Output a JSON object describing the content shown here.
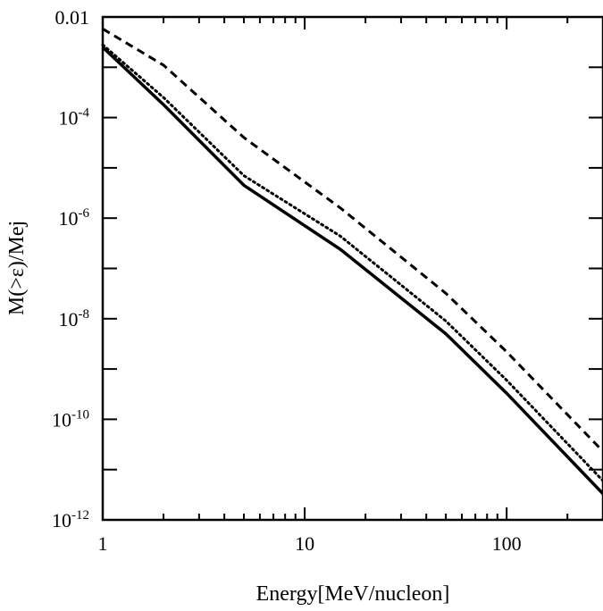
{
  "chart_data": {
    "type": "line",
    "title": "",
    "xlabel": "Energy[MeV/nucleon]",
    "ylabel": "M(>ε)/Mej",
    "xscale": "log",
    "yscale": "log",
    "xlim": [
      1,
      300
    ],
    "ylim": [
      1e-12,
      0.01
    ],
    "grid": false,
    "legend": "none",
    "x_ticks": [
      {
        "value": 1,
        "label": "1"
      },
      {
        "value": 10,
        "label": "10"
      },
      {
        "value": 100,
        "label": "100"
      }
    ],
    "y_ticks": [
      {
        "value": 0.01,
        "base": "0.01",
        "exp": ""
      },
      {
        "value": 0.0001,
        "base": "10",
        "exp": "-4"
      },
      {
        "value": 1e-06,
        "base": "10",
        "exp": "-6"
      },
      {
        "value": 1e-08,
        "base": "10",
        "exp": "-8"
      },
      {
        "value": 1e-10,
        "base": "10",
        "exp": "-10"
      },
      {
        "value": 1e-12,
        "base": "10",
        "exp": "-12"
      }
    ],
    "series": [
      {
        "style": "solid",
        "color": "#000000",
        "x": [
          1,
          2,
          5,
          15,
          50,
          100,
          300
        ],
        "y": [
          0.0025,
          0.00018,
          4.5e-06,
          2.4e-07,
          5e-09,
          3.3e-10,
          3.3e-12
        ]
      },
      {
        "style": "dotted",
        "color": "#000000",
        "x": [
          1,
          2,
          5,
          15,
          50,
          100,
          300
        ],
        "y": [
          0.0028,
          0.00025,
          7e-06,
          4.4e-07,
          9e-09,
          6e-10,
          6e-12
        ]
      },
      {
        "style": "dashed",
        "color": "#000000",
        "x": [
          1,
          2,
          5,
          15,
          50,
          100,
          300
        ],
        "y": [
          0.0058,
          0.0011,
          4e-05,
          1.6e-06,
          3.2e-08,
          2.2e-09,
          2.3e-11
        ]
      }
    ]
  }
}
